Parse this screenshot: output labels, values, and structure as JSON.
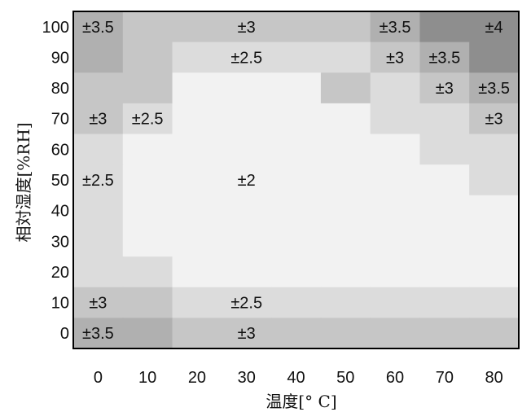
{
  "chart_data": {
    "type": "heatmap",
    "title": "",
    "xlabel": "温度[° C]",
    "ylabel": "相対湿度[%RH]",
    "x_ticks": [
      "0",
      "10",
      "20",
      "30",
      "40",
      "50",
      "60",
      "70",
      "80"
    ],
    "y_ticks": [
      "100",
      "90",
      "80",
      "70",
      "60",
      "50",
      "40",
      "30",
      "20",
      "10",
      "0"
    ],
    "xlim": [
      0,
      80
    ],
    "ylim": [
      0,
      100
    ],
    "value_unit": "±%RH",
    "color_scale": {
      "2": "#f2f2f2",
      "2.5": "#dcdcdc",
      "3": "#c6c6c6",
      "3.5": "#b0b0b0",
      "4": "#8e8e8e"
    },
    "grid_rows_top_to_bottom_y": [
      100,
      90,
      80,
      70,
      60,
      50,
      40,
      30,
      20,
      10,
      0
    ],
    "grid_cols_x": [
      0,
      10,
      20,
      30,
      40,
      50,
      60,
      70,
      80
    ],
    "accuracy_grid": [
      [
        3.5,
        3,
        3,
        3,
        3,
        3,
        3.5,
        4,
        4
      ],
      [
        3.5,
        3,
        2.5,
        2.5,
        2.5,
        2.5,
        3,
        3.5,
        4
      ],
      [
        3,
        3,
        2,
        2,
        2,
        3,
        2.5,
        3,
        3.5
      ],
      [
        3,
        2.5,
        2,
        2,
        2,
        2,
        2.5,
        2.5,
        3
      ],
      [
        2.5,
        2,
        2,
        2,
        2,
        2,
        2,
        2.5,
        2.5
      ],
      [
        2.5,
        2,
        2,
        2,
        2,
        2,
        2,
        2,
        2.5
      ],
      [
        2.5,
        2,
        2,
        2,
        2,
        2,
        2,
        2,
        2
      ],
      [
        2.5,
        2,
        2,
        2,
        2,
        2,
        2,
        2,
        2
      ],
      [
        2.5,
        2.5,
        2,
        2,
        2,
        2,
        2,
        2,
        2
      ],
      [
        3,
        3,
        2.5,
        2.5,
        2.5,
        2.5,
        2.5,
        2.5,
        2.5
      ],
      [
        3.5,
        3.5,
        3,
        3,
        3,
        3,
        3,
        3,
        3
      ]
    ],
    "labels": [
      {
        "x": 0,
        "y": 100,
        "text": "±3.5"
      },
      {
        "x": 30,
        "y": 100,
        "text": "±3"
      },
      {
        "x": 60,
        "y": 100,
        "text": "±3.5"
      },
      {
        "x": 80,
        "y": 100,
        "text": "±4"
      },
      {
        "x": 30,
        "y": 90,
        "text": "±2.5"
      },
      {
        "x": 60,
        "y": 90,
        "text": "±3"
      },
      {
        "x": 70,
        "y": 90,
        "text": "±3.5"
      },
      {
        "x": 70,
        "y": 80,
        "text": "±3"
      },
      {
        "x": 80,
        "y": 80,
        "text": "±3.5"
      },
      {
        "x": 0,
        "y": 70,
        "text": "±3"
      },
      {
        "x": 10,
        "y": 70,
        "text": "±2.5"
      },
      {
        "x": 80,
        "y": 70,
        "text": "±3"
      },
      {
        "x": 0,
        "y": 50,
        "text": "±2.5"
      },
      {
        "x": 30,
        "y": 50,
        "text": "±2"
      },
      {
        "x": 0,
        "y": 10,
        "text": "±3"
      },
      {
        "x": 30,
        "y": 10,
        "text": "±2.5"
      },
      {
        "x": 0,
        "y": 0,
        "text": "±3.5"
      },
      {
        "x": 30,
        "y": 0,
        "text": "±3"
      }
    ]
  }
}
